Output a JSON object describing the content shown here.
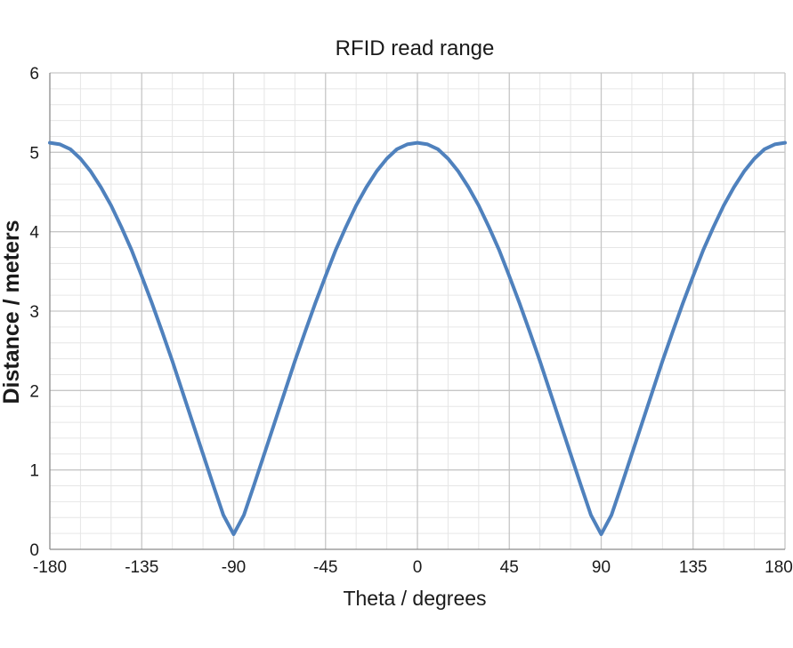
{
  "chart_data": {
    "type": "line",
    "title": "RFID read range",
    "xlabel": "Theta / degrees",
    "ylabel": "Distance / meters",
    "xlim": [
      -180,
      180
    ],
    "ylim": [
      0,
      6
    ],
    "x_ticks": [
      -180,
      -135,
      -90,
      -45,
      0,
      45,
      90,
      135,
      180
    ],
    "x_tick_labels": [
      "-180",
      "-135",
      "-90",
      "-45",
      "0",
      "45",
      "90",
      "135",
      "180"
    ],
    "y_ticks": [
      0,
      1,
      2,
      3,
      4,
      5,
      6
    ],
    "y_tick_labels": [
      "0",
      "1",
      "2",
      "3",
      "4",
      "5",
      "6"
    ],
    "x_minor_step": 15,
    "y_minor_step": 0.2,
    "grid": true,
    "legend": "none",
    "series": [
      {
        "color": "#4f81bd",
        "x": [
          -180,
          -175,
          -170,
          -165,
          -160,
          -155,
          -150,
          -145,
          -140,
          -135,
          -130,
          -125,
          -120,
          -115,
          -110,
          -105,
          -100,
          -95,
          -90,
          -85,
          -80,
          -75,
          -70,
          -65,
          -60,
          -55,
          -50,
          -45,
          -40,
          -35,
          -30,
          -25,
          -20,
          -15,
          -10,
          -5,
          0,
          5,
          10,
          15,
          20,
          25,
          30,
          35,
          40,
          45,
          50,
          55,
          60,
          65,
          70,
          75,
          80,
          85,
          90,
          95,
          100,
          105,
          110,
          115,
          120,
          125,
          130,
          135,
          140,
          145,
          150,
          155,
          160,
          165,
          170,
          175,
          180
        ],
        "y": [
          5.12,
          5.1,
          5.04,
          4.92,
          4.76,
          4.56,
          4.33,
          4.06,
          3.77,
          3.44,
          3.1,
          2.74,
          2.37,
          1.98,
          1.59,
          1.2,
          0.81,
          0.43,
          0.19,
          0.43,
          0.81,
          1.2,
          1.59,
          1.98,
          2.37,
          2.74,
          3.1,
          3.44,
          3.77,
          4.06,
          4.33,
          4.56,
          4.76,
          4.92,
          5.04,
          5.1,
          5.12,
          5.1,
          5.04,
          4.92,
          4.76,
          4.56,
          4.33,
          4.06,
          3.77,
          3.44,
          3.1,
          2.74,
          2.37,
          1.98,
          1.59,
          1.2,
          0.81,
          0.43,
          0.19,
          0.43,
          0.81,
          1.2,
          1.59,
          1.98,
          2.37,
          2.74,
          3.1,
          3.44,
          3.77,
          4.06,
          4.33,
          4.56,
          4.76,
          4.92,
          5.04,
          5.1,
          5.12
        ]
      }
    ]
  }
}
